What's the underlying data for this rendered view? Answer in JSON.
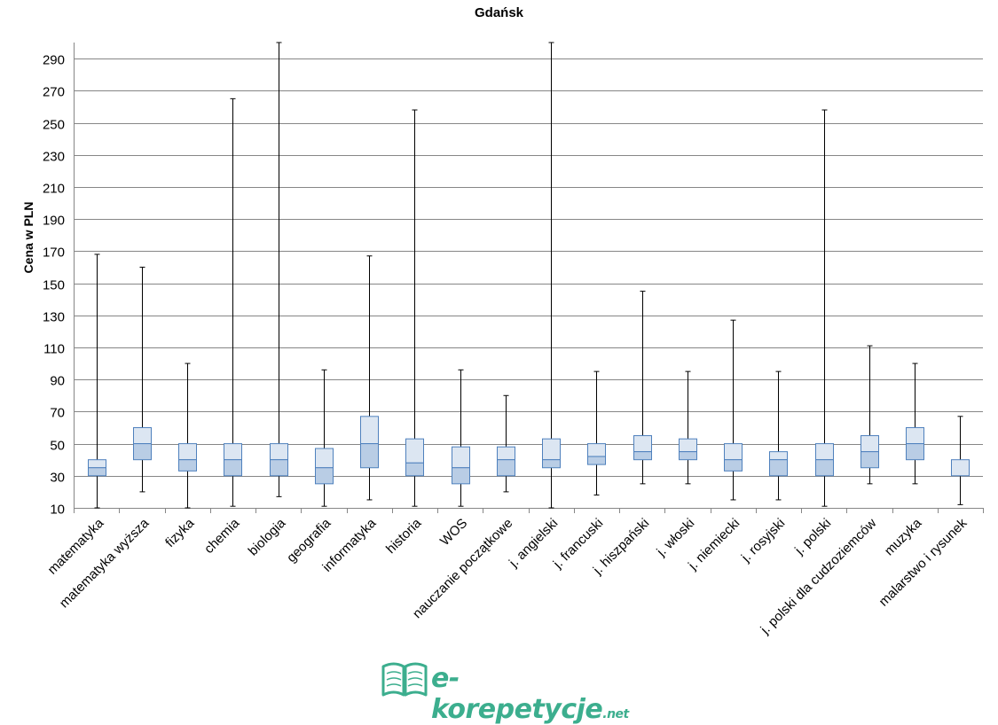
{
  "chart_data": {
    "type": "box",
    "title": "Gdańsk",
    "xlabel": "",
    "ylabel": "Cena w PLN",
    "ylim": [
      10,
      300
    ],
    "yticks": [
      10,
      30,
      50,
      70,
      90,
      110,
      130,
      150,
      170,
      190,
      210,
      230,
      250,
      270,
      290
    ],
    "grid": true,
    "categories": [
      "matematyka",
      "matematyka wyższa",
      "fizyka",
      "chemia",
      "biologia",
      "geografia",
      "informatyka",
      "historia",
      "WOS",
      "nauczanie początkowe",
      "j. angielski",
      "j. francuski",
      "j. hiszpański",
      "j. włoski",
      "j. niemiecki",
      "j. rosyjski",
      "j. polski",
      "j. polski dla cudzoziemców",
      "muzyka",
      "malarstwo i rysunek"
    ],
    "min": [
      10,
      20,
      10,
      11,
      17,
      11,
      15,
      11,
      11,
      20,
      10,
      18,
      25,
      25,
      15,
      15,
      11,
      25,
      25,
      12
    ],
    "q1": [
      30,
      40,
      33,
      30,
      30,
      25,
      35,
      30,
      25,
      30,
      35,
      37,
      40,
      40,
      33,
      30,
      30,
      35,
      40,
      30
    ],
    "median": [
      35,
      50,
      40,
      40,
      40,
      35,
      50,
      38,
      35,
      40,
      40,
      42,
      45,
      45,
      40,
      40,
      40,
      45,
      50,
      30
    ],
    "q3": [
      40,
      60,
      50,
      50,
      50,
      47,
      67,
      53,
      48,
      48,
      53,
      50,
      55,
      53,
      50,
      45,
      50,
      55,
      60,
      40
    ],
    "max": [
      168,
      160,
      100,
      265,
      300,
      96,
      167,
      258,
      96,
      80,
      300,
      95,
      145,
      95,
      127,
      95,
      258,
      111,
      100,
      67
    ],
    "colors": {
      "upper_box": "#dce6f2",
      "lower_box": "#b9cde5",
      "box_border": "#4f81bd",
      "whisker": "#000000",
      "grid": "#868686"
    }
  },
  "logo": {
    "name": "e-korepetycje",
    "suffix": ".net",
    "icon": "open-book-icon",
    "color": "#3cae8e"
  }
}
